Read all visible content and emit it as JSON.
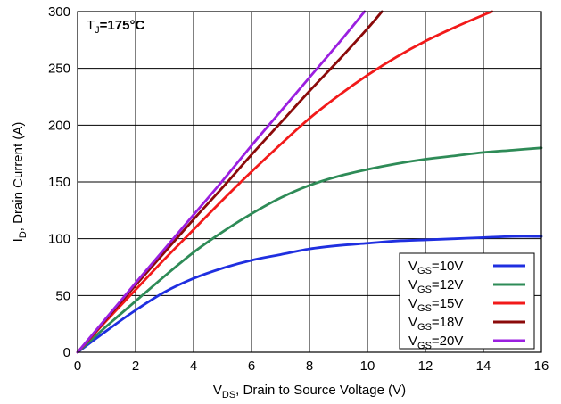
{
  "chart_data": {
    "type": "line",
    "annotation": {
      "base": "T",
      "sub": "J",
      "rest": "=175°C"
    },
    "xlabel": {
      "base": "V",
      "sub": "DS",
      "rest": ", Drain to Source Voltage (V)"
    },
    "ylabel": {
      "base": "I",
      "sub": "D",
      "rest": ", Drain Current (A)"
    },
    "xlim": [
      0,
      16
    ],
    "ylim": [
      0,
      300
    ],
    "xticks": [
      0,
      2,
      4,
      6,
      8,
      10,
      12,
      14,
      16
    ],
    "yticks": [
      0,
      50,
      100,
      150,
      200,
      250,
      300
    ],
    "grid": true,
    "legend_position": "bottom-right",
    "series": [
      {
        "name": "VGS=10V",
        "label_base": "V",
        "label_sub": "GS",
        "label_rest": "=10V",
        "color": "#1f2fe0",
        "x": [
          0,
          1,
          2,
          3,
          4,
          5,
          6,
          7,
          8,
          9,
          10,
          11,
          12,
          13,
          14,
          15,
          16
        ],
        "y": [
          0,
          19,
          37,
          53,
          65,
          74,
          81,
          86,
          91,
          94,
          96,
          98,
          99,
          100,
          101,
          102,
          102
        ]
      },
      {
        "name": "VGS=12V",
        "label_base": "V",
        "label_sub": "GS",
        "label_rest": "=12V",
        "color": "#2e8b57",
        "x": [
          0,
          1,
          2,
          3,
          4,
          5,
          6,
          7,
          8,
          9,
          10,
          11,
          12,
          13,
          14,
          15,
          16
        ],
        "y": [
          0,
          23,
          45,
          67,
          88,
          106,
          122,
          136,
          147,
          155,
          161,
          166,
          170,
          173,
          176,
          178,
          180
        ]
      },
      {
        "name": "VGS=15V",
        "label_base": "V",
        "label_sub": "GS",
        "label_rest": "=15V",
        "color": "#f21a1a",
        "x": [
          0,
          1,
          2,
          3,
          4,
          5,
          6,
          7,
          8,
          9,
          10,
          11,
          12,
          13,
          14,
          14.3
        ],
        "y": [
          0,
          28,
          55,
          82,
          108,
          134,
          159,
          183,
          206,
          226,
          244,
          260,
          274,
          286,
          297,
          300
        ]
      },
      {
        "name": "VGS=18V",
        "label_base": "V",
        "label_sub": "GS",
        "label_rest": "=18V",
        "color": "#8b0a0a",
        "x": [
          0,
          1,
          2,
          3,
          4,
          5,
          6,
          7,
          8,
          9,
          10,
          10.5
        ],
        "y": [
          0,
          29.5,
          59,
          88,
          117,
          145,
          174,
          202,
          230,
          257,
          285,
          300
        ]
      },
      {
        "name": "VGS=20V",
        "label_base": "V",
        "label_sub": "GS",
        "label_rest": "=20V",
        "color": "#9b1fe0",
        "x": [
          0,
          1,
          2,
          3,
          4,
          5,
          6,
          7,
          8,
          9,
          9.9
        ],
        "y": [
          0,
          30.5,
          61,
          91,
          121,
          151,
          182,
          212,
          242,
          272,
          300
        ]
      }
    ]
  }
}
